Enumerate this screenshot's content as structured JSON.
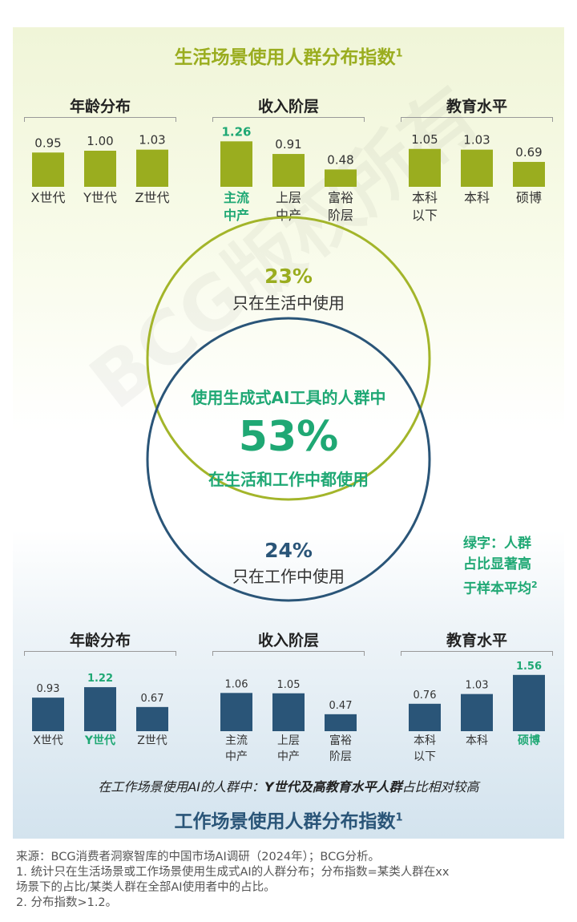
{
  "top_title": "生活场景使用人群分布指数",
  "bottom_title": "工作场景使用人群分布指数",
  "title_sup": "1",
  "venn": {
    "top_pct": "23%",
    "top_label": "只在生活中使用",
    "center_title": "使用生成式AI工具的人群中",
    "center_pct": "53%",
    "center_label": "在生活和工作中都使用",
    "bottom_pct": "24%",
    "bottom_label": "只在工作中使用"
  },
  "side_note": {
    "line1": "绿字：人群",
    "line2": "占比显著高",
    "line3": "于样本平均",
    "sup": "2"
  },
  "work_note": {
    "prefix": "在工作场景使用AI的人群中：",
    "bold": "Y世代及高教育水平人群",
    "suffix": "占比相对较高"
  },
  "footnotes": {
    "source": "来源：BCG消费者洞察智库的中国市场AI调研（2024年）；BCG分析。",
    "note1a": "1. 统计只在生活场景或工作场景使用生成式AI的人群分布；分布指数=某类人群在xx",
    "note1b": "场景下的占比/某类人群在全部AI使用者中的占比。",
    "note2": "2. 分布指数>1.2。"
  },
  "watermark": "BCG版权所有",
  "colors": {
    "life_bar": "#9aad1f",
    "work_bar": "#2a5578",
    "highlight": "#1fa874",
    "life_circle": "#a3b52a",
    "work_circle": "#2a5578"
  },
  "chart_data": [
    {
      "type": "bar",
      "title": "年龄分布",
      "context": "生活场景",
      "categories": [
        "X世代",
        "Y世代",
        "Z世代"
      ],
      "values": [
        0.95,
        1.0,
        1.03
      ],
      "labels": [
        "0.95",
        "1.00",
        "1.03"
      ],
      "highlight": [
        false,
        false,
        false
      ]
    },
    {
      "type": "bar",
      "title": "收入阶层",
      "context": "生活场景",
      "categories": [
        "主流\n中产",
        "上层\n中产",
        "富裕\n阶层"
      ],
      "values": [
        1.26,
        0.91,
        0.48
      ],
      "labels": [
        "1.26",
        "0.91",
        "0.48"
      ],
      "highlight": [
        true,
        false,
        false
      ]
    },
    {
      "type": "bar",
      "title": "教育水平",
      "context": "生活场景",
      "categories": [
        "本科\n以下",
        "本科",
        "硕博"
      ],
      "values": [
        1.05,
        1.03,
        0.69
      ],
      "labels": [
        "1.05",
        "1.03",
        "0.69"
      ],
      "highlight": [
        false,
        false,
        false
      ]
    },
    {
      "type": "bar",
      "title": "年龄分布",
      "context": "工作场景",
      "categories": [
        "X世代",
        "Y世代",
        "Z世代"
      ],
      "values": [
        0.93,
        1.22,
        0.67
      ],
      "labels": [
        "0.93",
        "1.22",
        "0.67"
      ],
      "highlight": [
        false,
        true,
        false
      ]
    },
    {
      "type": "bar",
      "title": "收入阶层",
      "context": "工作场景",
      "categories": [
        "主流\n中产",
        "上层\n中产",
        "富裕\n阶层"
      ],
      "values": [
        1.06,
        1.05,
        0.47
      ],
      "labels": [
        "1.06",
        "1.05",
        "0.47"
      ],
      "highlight": [
        false,
        false,
        false
      ]
    },
    {
      "type": "bar",
      "title": "教育水平",
      "context": "工作场景",
      "categories": [
        "本科\n以下",
        "本科",
        "硕博"
      ],
      "values": [
        0.76,
        1.03,
        1.56
      ],
      "labels": [
        "0.76",
        "1.03",
        "1.56"
      ],
      "highlight": [
        false,
        false,
        true
      ]
    }
  ]
}
